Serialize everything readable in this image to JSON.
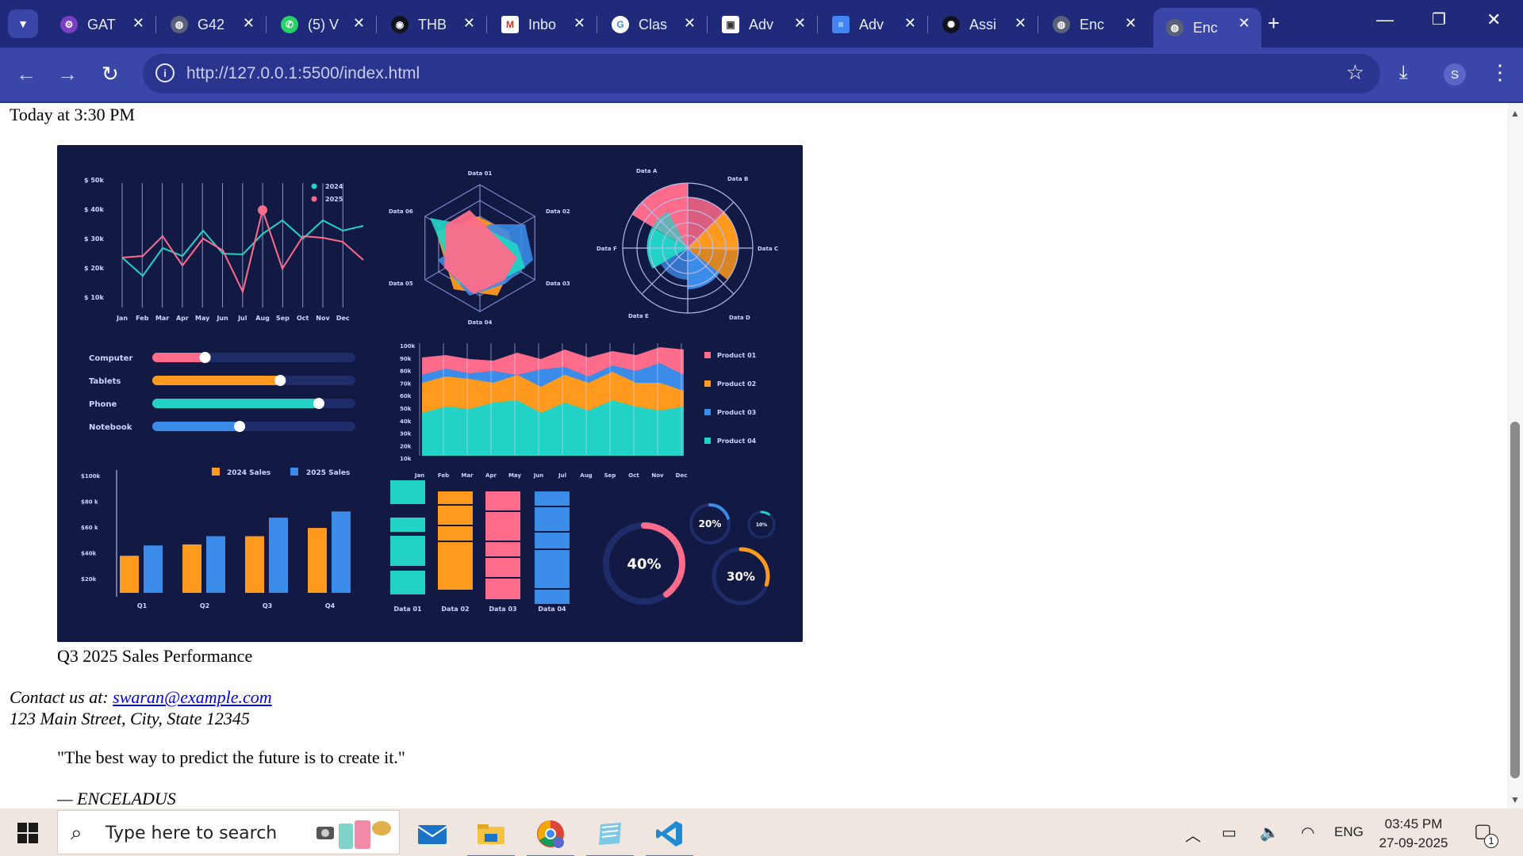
{
  "browser": {
    "tabs": [
      {
        "title": "GAT",
        "icon": "gear-icon"
      },
      {
        "title": "G42",
        "icon": "globe-icon"
      },
      {
        "title": "(5) V",
        "icon": "whatsapp-icon"
      },
      {
        "title": "THB",
        "icon": "github-icon"
      },
      {
        "title": "Inbo",
        "icon": "gmail-icon"
      },
      {
        "title": "Clas",
        "icon": "google-icon"
      },
      {
        "title": "Adv",
        "icon": "classroom-icon"
      },
      {
        "title": "Adv",
        "icon": "docs-icon"
      },
      {
        "title": "Assi",
        "icon": "openai-icon"
      },
      {
        "title": "Enc",
        "icon": "globe-icon"
      },
      {
        "title": "Enc",
        "icon": "globe-icon",
        "active": true
      }
    ],
    "url": "http://127.0.0.1:5500/index.html",
    "profile_initial": "S",
    "theme_color": "#1f2a7a"
  },
  "page": {
    "timestamp": "Today at 3:30 PM",
    "figure_caption": "Q3 2025 Sales Performance",
    "contact_prefix": "Contact us at:",
    "contact_email": "swaran@example.com",
    "address": "123 Main Street, City, State 12345",
    "quote": "\"The best way to predict the future is to create it.\"",
    "attribution": "— ENCELADUS"
  },
  "dashboard": {
    "line_chart": {
      "y_labels": [
        "$ 50k",
        "$ 40k",
        "$ 30k",
        "$ 20k",
        "$ 10k"
      ],
      "months": [
        "Jan",
        "Feb",
        "Mar",
        "Apr",
        "May",
        "Jun",
        "Jul",
        "Aug",
        "Sep",
        "Oct",
        "Nov",
        "Dec"
      ],
      "legend": [
        "2024",
        "2025"
      ]
    },
    "radar": {
      "labels": [
        "Data 01",
        "Data 02",
        "Data 03",
        "Data 04",
        "Data 05",
        "Data 06"
      ]
    },
    "polar": {
      "labels": [
        "Data A",
        "Data B",
        "Data C",
        "Data D",
        "Data E",
        "Data F"
      ]
    },
    "progress": [
      {
        "label": "Computer",
        "value": 0.26,
        "color": "#ff6b8a"
      },
      {
        "label": "Tablets",
        "value": 0.63,
        "color": "#ff9a1f"
      },
      {
        "label": "Phone",
        "value": 0.82,
        "color": "#22d3c5"
      },
      {
        "label": "Notebook",
        "value": 0.43,
        "color": "#3b8be8"
      }
    ],
    "area_chart": {
      "y_labels": [
        "100k",
        "90k",
        "80k",
        "70k",
        "60k",
        "50k",
        "40k",
        "30k",
        "20k",
        "10k"
      ],
      "months": [
        "Jan",
        "Feb",
        "Mar",
        "Apr",
        "May",
        "Jun",
        "Jul",
        "Aug",
        "Sep",
        "Oct",
        "Nov",
        "Dec"
      ],
      "legend": [
        "Product 01",
        "Product 02",
        "Product 03",
        "Product 04"
      ]
    },
    "bar_chart": {
      "y_labels": [
        "$100k",
        "$80 k",
        "$60 k",
        "$40k",
        "$20k"
      ],
      "quarters": [
        "Q1",
        "Q2",
        "Q3",
        "Q4"
      ],
      "legend": [
        "2024 Sales",
        "2025 Sales"
      ],
      "sales_2024_k": [
        36,
        47,
        55,
        63
      ],
      "sales_2025_k": [
        46,
        55,
        73,
        79
      ]
    },
    "stacks": {
      "labels": [
        "Data 01",
        "Data 02",
        "Data 03",
        "Data 04"
      ]
    },
    "gauges": [
      {
        "label": "40%",
        "value": 0.4,
        "color": "#ff6b8a"
      },
      {
        "label": "20%",
        "value": 0.2,
        "color": "#3b8be8"
      },
      {
        "label": "10%",
        "value": 0.1,
        "color": "#22d3c5"
      },
      {
        "label": "30%",
        "value": 0.3,
        "color": "#ff9a1f"
      }
    ]
  },
  "taskbar": {
    "search_placeholder": "Type here to search",
    "language": "ENG",
    "time": "03:45 PM",
    "date": "27-09-2025",
    "notification_count": "1"
  }
}
